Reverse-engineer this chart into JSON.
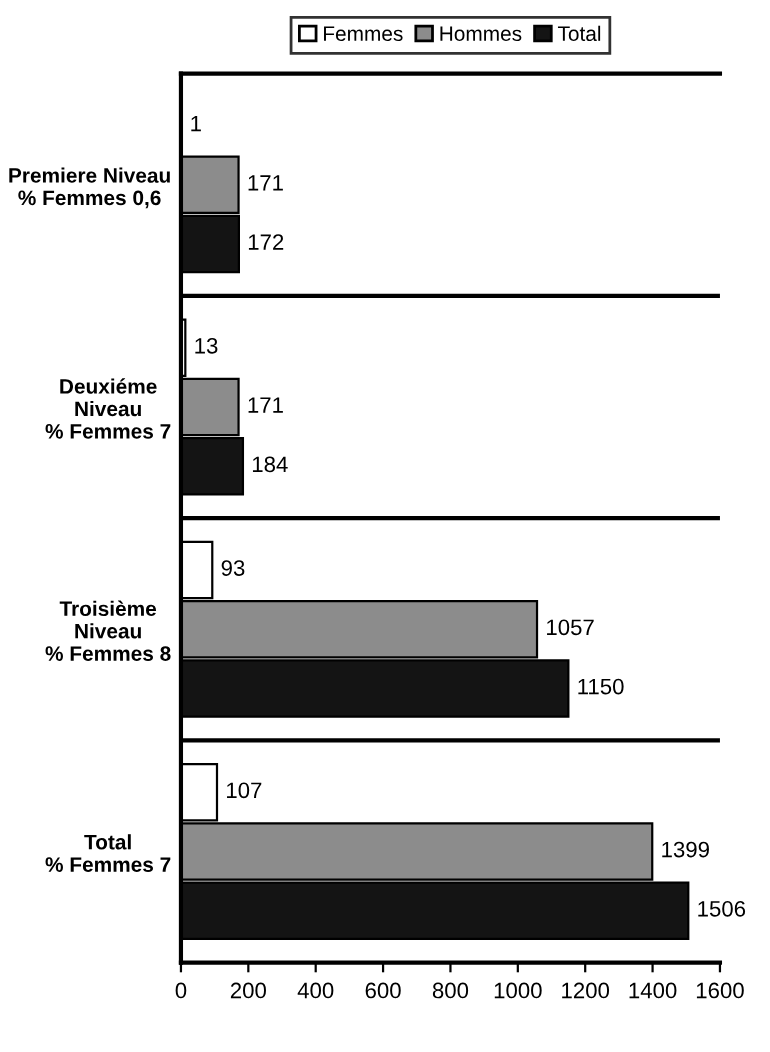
{
  "chart_data": {
    "type": "bar",
    "orientation": "horizontal",
    "categories": [
      "Premiere Niveau\n% Femmes 0,6",
      "Deuxiéme\nNiveau\n% Femmes 7",
      "Troisième\nNiveau\n% Femmes 8",
      "Total\n% Femmes 7"
    ],
    "series": [
      {
        "name": "Femmes",
        "color": "#ffffff",
        "values": [
          1,
          13,
          93,
          107
        ]
      },
      {
        "name": "Hommes",
        "color": "#8c8c8c",
        "values": [
          171,
          171,
          1057,
          1399
        ]
      },
      {
        "name": "Total",
        "color": "#141414",
        "values": [
          172,
          184,
          1150,
          1506
        ]
      }
    ],
    "xlim": [
      0,
      1600
    ],
    "xticks": [
      0,
      200,
      400,
      600,
      800,
      1000,
      1200,
      1400,
      1600
    ],
    "data_labels": true,
    "legend": "top",
    "grid": false
  }
}
